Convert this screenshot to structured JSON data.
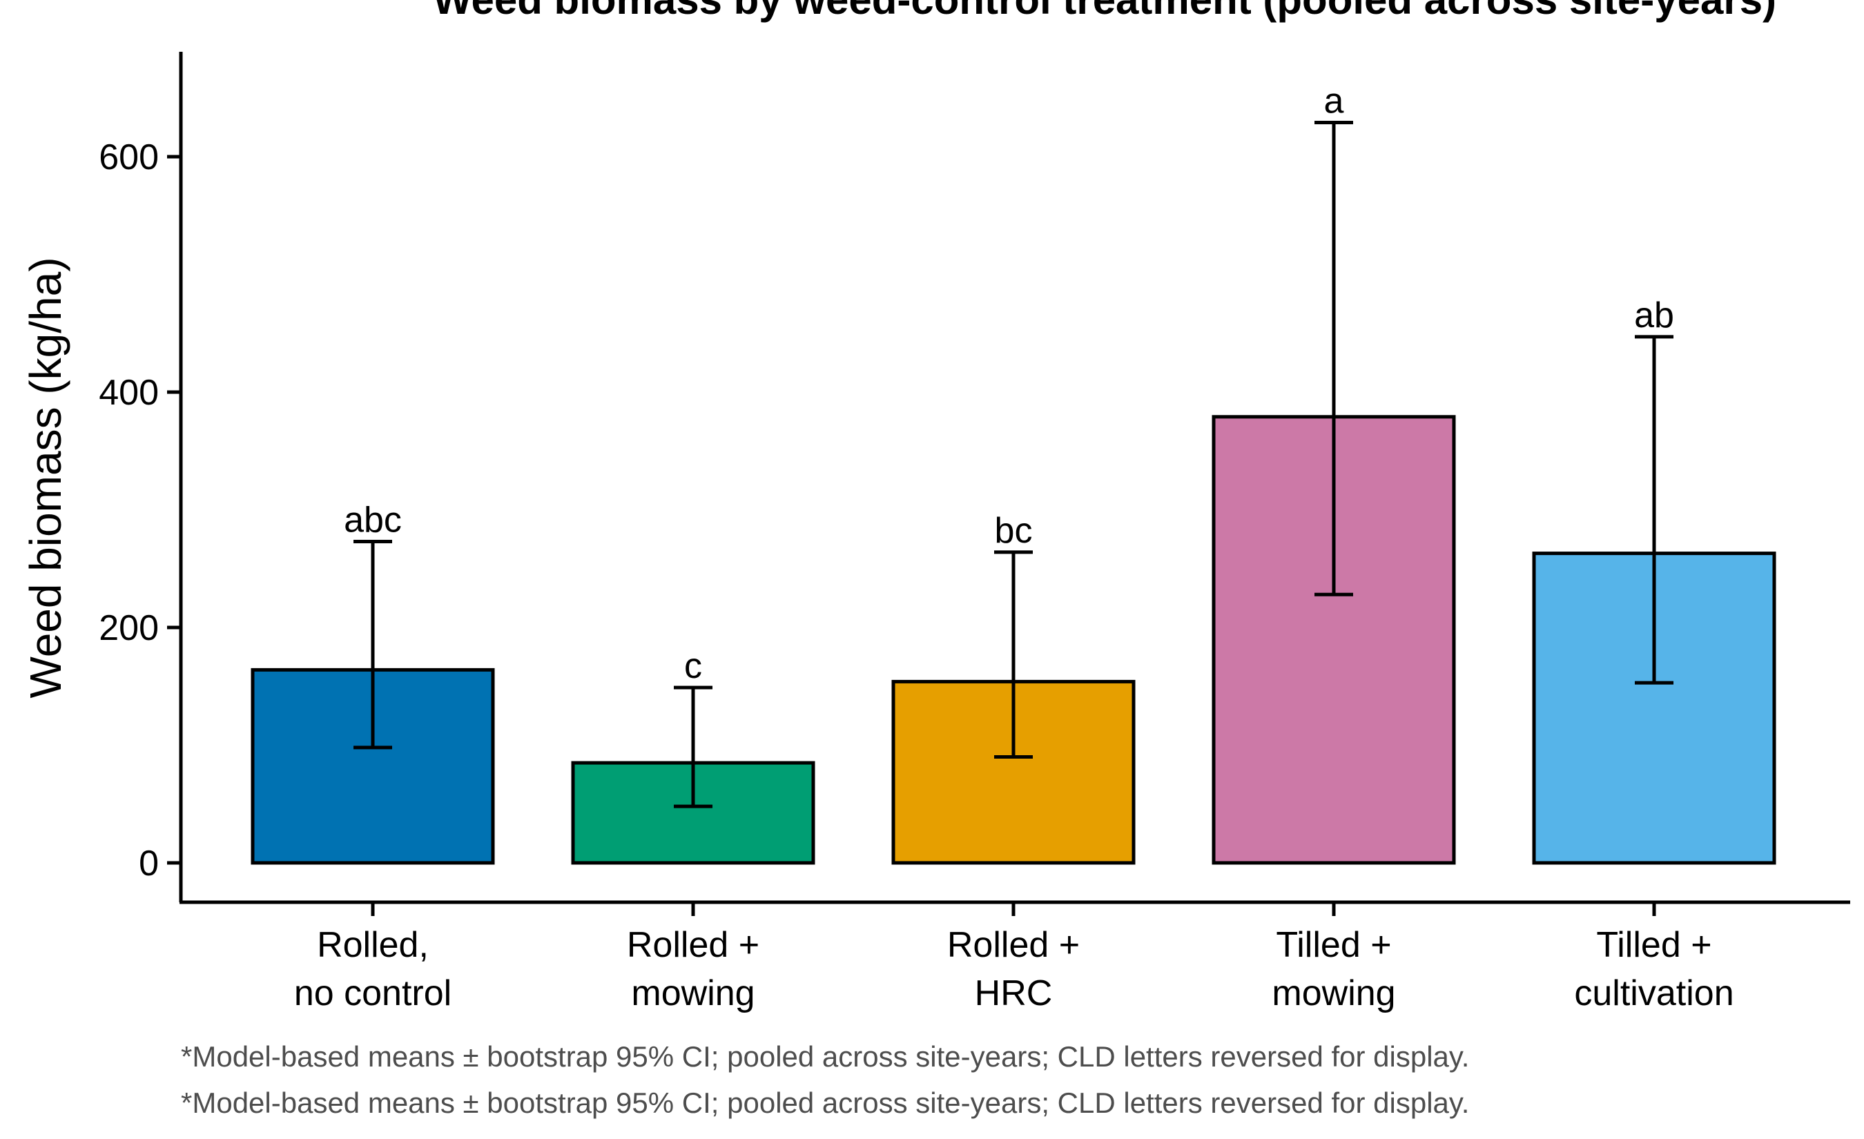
{
  "chart_data": {
    "type": "bar",
    "title": "Weed biomass by weed-control treatment (pooled across site-years)",
    "xlabel": "",
    "ylabel": "Weed biomass (kg/ha)",
    "ylim": [
      -32,
      688
    ],
    "yticks": [
      0,
      200,
      400,
      600
    ],
    "grid": false,
    "legend": "none",
    "categories": [
      [
        "Rolled,",
        "no control"
      ],
      [
        "Rolled +",
        "mowing"
      ],
      [
        "Rolled +",
        "HRC"
      ],
      [
        "Tilled +",
        "mowing"
      ],
      [
        "Tilled +",
        "cultivation"
      ]
    ],
    "values": [
      164,
      85,
      154,
      379,
      263
    ],
    "ci_lower": [
      98,
      48,
      90,
      228,
      153
    ],
    "ci_upper": [
      273,
      149,
      264,
      629,
      447
    ],
    "cld_letters": [
      "abc",
      "c",
      "bc",
      "a",
      "ab"
    ],
    "colors": [
      "#0072B2",
      "#009E73",
      "#E69F00",
      "#CC79A7",
      "#56B4E9"
    ],
    "caption": "*Model-based means ± bootstrap 95% CI; pooled across site-years; CLD letters reversed for display."
  }
}
